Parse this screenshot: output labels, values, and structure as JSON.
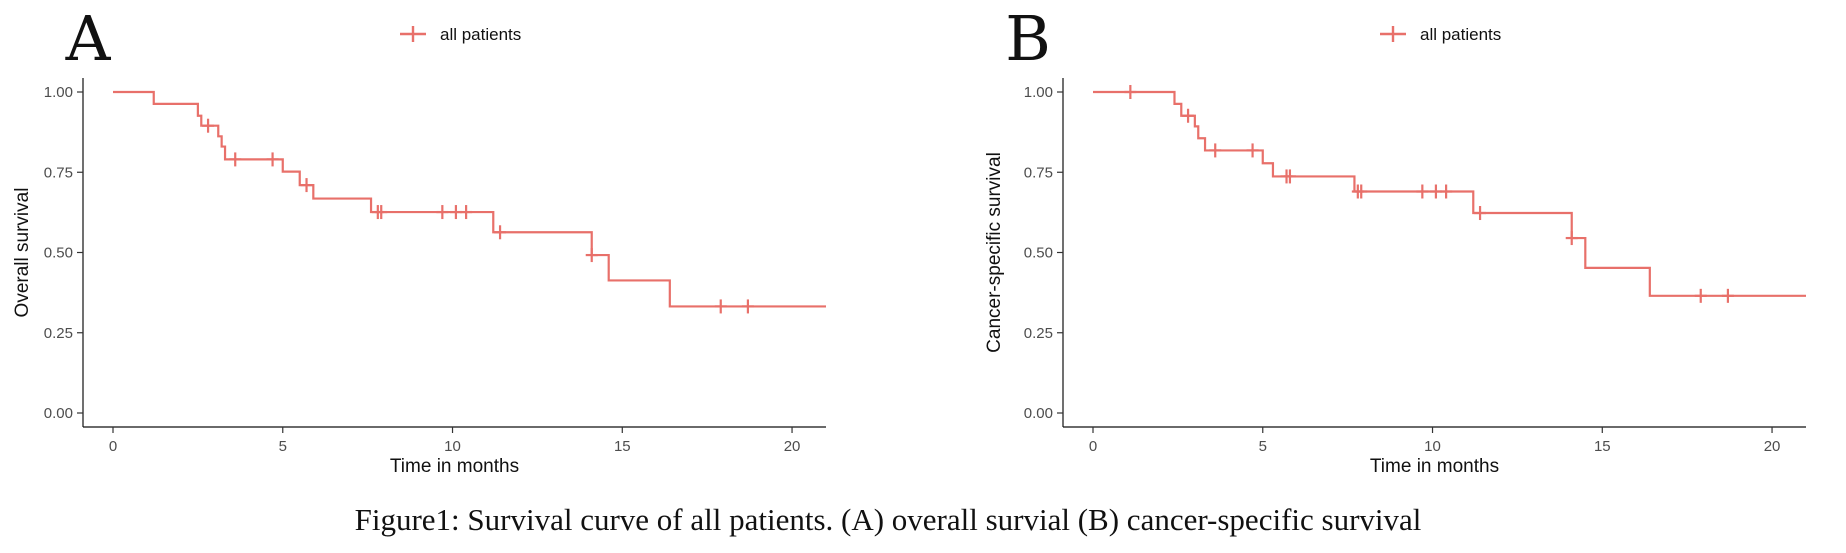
{
  "chart_data": [
    {
      "panel": "A",
      "type": "line",
      "subtype": "kaplan-meier-step",
      "legend": {
        "label": "all patients",
        "position": "top"
      },
      "xlabel": "Time in months",
      "ylabel": "Overall survival",
      "xlim": [
        0,
        21
      ],
      "ylim": [
        0,
        1
      ],
      "x_ticks": [
        0,
        5,
        10,
        15,
        20
      ],
      "y_ticks": [
        "0.00",
        "0.25",
        "0.50",
        "0.75",
        "1.00"
      ],
      "grid": false,
      "color": "#e8706a",
      "series": [
        {
          "name": "all patients",
          "steps": [
            [
              0,
              1.0
            ],
            [
              1.2,
              0.963
            ],
            [
              2.5,
              0.926
            ],
            [
              2.6,
              0.895
            ],
            [
              3.1,
              0.862
            ],
            [
              3.2,
              0.83
            ],
            [
              3.3,
              0.79
            ],
            [
              5.0,
              0.752
            ],
            [
              5.5,
              0.71
            ],
            [
              5.9,
              0.668
            ],
            [
              7.6,
              0.626
            ],
            [
              11.2,
              0.563
            ],
            [
              14.1,
              0.492
            ],
            [
              14.6,
              0.413
            ],
            [
              16.4,
              0.332
            ],
            [
              21,
              0.332
            ]
          ],
          "censored": [
            [
              2.8,
              0.895
            ],
            [
              3.6,
              0.79
            ],
            [
              4.7,
              0.79
            ],
            [
              5.7,
              0.71
            ],
            [
              7.8,
              0.626
            ],
            [
              7.9,
              0.626
            ],
            [
              9.7,
              0.626
            ],
            [
              10.1,
              0.626
            ],
            [
              10.4,
              0.626
            ],
            [
              11.4,
              0.563
            ],
            [
              14.1,
              0.492
            ],
            [
              17.9,
              0.332
            ],
            [
              18.7,
              0.332
            ]
          ]
        }
      ]
    },
    {
      "panel": "B",
      "type": "line",
      "subtype": "kaplan-meier-step",
      "legend": {
        "label": "all patients",
        "position": "top"
      },
      "xlabel": "Time in months",
      "ylabel": "Cancer-specific survival",
      "xlim": [
        0,
        21
      ],
      "ylim": [
        0,
        1
      ],
      "x_ticks": [
        0,
        5,
        10,
        15,
        20
      ],
      "y_ticks": [
        "0.00",
        "0.25",
        "0.50",
        "0.75",
        "1.00"
      ],
      "grid": false,
      "color": "#e8706a",
      "series": [
        {
          "name": "all patients",
          "steps": [
            [
              0,
              1.0
            ],
            [
              2.4,
              0.963
            ],
            [
              2.6,
              0.926
            ],
            [
              3.0,
              0.893
            ],
            [
              3.1,
              0.856
            ],
            [
              3.3,
              0.818
            ],
            [
              5.0,
              0.778
            ],
            [
              5.3,
              0.737
            ],
            [
              7.7,
              0.69
            ],
            [
              11.2,
              0.623
            ],
            [
              14.1,
              0.545
            ],
            [
              14.5,
              0.452
            ],
            [
              16.4,
              0.365
            ],
            [
              21,
              0.365
            ]
          ],
          "censored": [
            [
              1.1,
              1.0
            ],
            [
              2.8,
              0.926
            ],
            [
              3.6,
              0.818
            ],
            [
              4.7,
              0.818
            ],
            [
              5.7,
              0.737
            ],
            [
              5.8,
              0.737
            ],
            [
              7.8,
              0.69
            ],
            [
              7.9,
              0.69
            ],
            [
              9.7,
              0.69
            ],
            [
              10.1,
              0.69
            ],
            [
              10.4,
              0.69
            ],
            [
              11.4,
              0.623
            ],
            [
              14.1,
              0.545
            ],
            [
              17.9,
              0.365
            ],
            [
              18.7,
              0.365
            ]
          ]
        }
      ]
    }
  ],
  "caption": "Figure1: Survival curve of all patients. (A) overall survial (B) cancer-specific survival"
}
